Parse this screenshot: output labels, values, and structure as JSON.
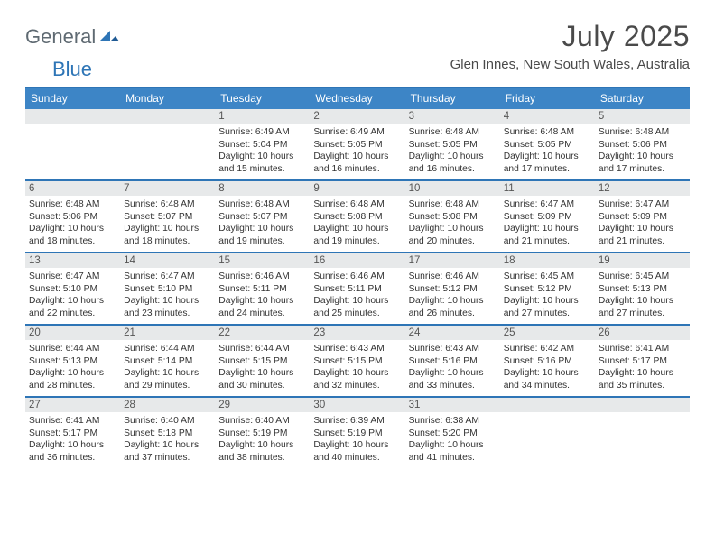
{
  "logo": {
    "general": "General",
    "blue": "Blue"
  },
  "title": "July 2025",
  "location": "Glen Innes, New South Wales, Australia",
  "colors": {
    "accent": "#2e75b6",
    "header_bg": "#3d85c6",
    "daynum_bg": "#e7e9ea",
    "text": "#4a4a4a",
    "body_text": "#333333"
  },
  "day_headers": [
    "Sunday",
    "Monday",
    "Tuesday",
    "Wednesday",
    "Thursday",
    "Friday",
    "Saturday"
  ],
  "weeks": [
    [
      {
        "n": "",
        "sr": "",
        "ss": "",
        "dl": ""
      },
      {
        "n": "",
        "sr": "",
        "ss": "",
        "dl": ""
      },
      {
        "n": "1",
        "sr": "6:49 AM",
        "ss": "5:04 PM",
        "dl": "10 hours and 15 minutes."
      },
      {
        "n": "2",
        "sr": "6:49 AM",
        "ss": "5:05 PM",
        "dl": "10 hours and 16 minutes."
      },
      {
        "n": "3",
        "sr": "6:48 AM",
        "ss": "5:05 PM",
        "dl": "10 hours and 16 minutes."
      },
      {
        "n": "4",
        "sr": "6:48 AM",
        "ss": "5:05 PM",
        "dl": "10 hours and 17 minutes."
      },
      {
        "n": "5",
        "sr": "6:48 AM",
        "ss": "5:06 PM",
        "dl": "10 hours and 17 minutes."
      }
    ],
    [
      {
        "n": "6",
        "sr": "6:48 AM",
        "ss": "5:06 PM",
        "dl": "10 hours and 18 minutes."
      },
      {
        "n": "7",
        "sr": "6:48 AM",
        "ss": "5:07 PM",
        "dl": "10 hours and 18 minutes."
      },
      {
        "n": "8",
        "sr": "6:48 AM",
        "ss": "5:07 PM",
        "dl": "10 hours and 19 minutes."
      },
      {
        "n": "9",
        "sr": "6:48 AM",
        "ss": "5:08 PM",
        "dl": "10 hours and 19 minutes."
      },
      {
        "n": "10",
        "sr": "6:48 AM",
        "ss": "5:08 PM",
        "dl": "10 hours and 20 minutes."
      },
      {
        "n": "11",
        "sr": "6:47 AM",
        "ss": "5:09 PM",
        "dl": "10 hours and 21 minutes."
      },
      {
        "n": "12",
        "sr": "6:47 AM",
        "ss": "5:09 PM",
        "dl": "10 hours and 21 minutes."
      }
    ],
    [
      {
        "n": "13",
        "sr": "6:47 AM",
        "ss": "5:10 PM",
        "dl": "10 hours and 22 minutes."
      },
      {
        "n": "14",
        "sr": "6:47 AM",
        "ss": "5:10 PM",
        "dl": "10 hours and 23 minutes."
      },
      {
        "n": "15",
        "sr": "6:46 AM",
        "ss": "5:11 PM",
        "dl": "10 hours and 24 minutes."
      },
      {
        "n": "16",
        "sr": "6:46 AM",
        "ss": "5:11 PM",
        "dl": "10 hours and 25 minutes."
      },
      {
        "n": "17",
        "sr": "6:46 AM",
        "ss": "5:12 PM",
        "dl": "10 hours and 26 minutes."
      },
      {
        "n": "18",
        "sr": "6:45 AM",
        "ss": "5:12 PM",
        "dl": "10 hours and 27 minutes."
      },
      {
        "n": "19",
        "sr": "6:45 AM",
        "ss": "5:13 PM",
        "dl": "10 hours and 27 minutes."
      }
    ],
    [
      {
        "n": "20",
        "sr": "6:44 AM",
        "ss": "5:13 PM",
        "dl": "10 hours and 28 minutes."
      },
      {
        "n": "21",
        "sr": "6:44 AM",
        "ss": "5:14 PM",
        "dl": "10 hours and 29 minutes."
      },
      {
        "n": "22",
        "sr": "6:44 AM",
        "ss": "5:15 PM",
        "dl": "10 hours and 30 minutes."
      },
      {
        "n": "23",
        "sr": "6:43 AM",
        "ss": "5:15 PM",
        "dl": "10 hours and 32 minutes."
      },
      {
        "n": "24",
        "sr": "6:43 AM",
        "ss": "5:16 PM",
        "dl": "10 hours and 33 minutes."
      },
      {
        "n": "25",
        "sr": "6:42 AM",
        "ss": "5:16 PM",
        "dl": "10 hours and 34 minutes."
      },
      {
        "n": "26",
        "sr": "6:41 AM",
        "ss": "5:17 PM",
        "dl": "10 hours and 35 minutes."
      }
    ],
    [
      {
        "n": "27",
        "sr": "6:41 AM",
        "ss": "5:17 PM",
        "dl": "10 hours and 36 minutes."
      },
      {
        "n": "28",
        "sr": "6:40 AM",
        "ss": "5:18 PM",
        "dl": "10 hours and 37 minutes."
      },
      {
        "n": "29",
        "sr": "6:40 AM",
        "ss": "5:19 PM",
        "dl": "10 hours and 38 minutes."
      },
      {
        "n": "30",
        "sr": "6:39 AM",
        "ss": "5:19 PM",
        "dl": "10 hours and 40 minutes."
      },
      {
        "n": "31",
        "sr": "6:38 AM",
        "ss": "5:20 PM",
        "dl": "10 hours and 41 minutes."
      },
      {
        "n": "",
        "sr": "",
        "ss": "",
        "dl": ""
      },
      {
        "n": "",
        "sr": "",
        "ss": "",
        "dl": ""
      }
    ]
  ],
  "labels": {
    "sunrise": "Sunrise:",
    "sunset": "Sunset:",
    "daylight": "Daylight:"
  }
}
